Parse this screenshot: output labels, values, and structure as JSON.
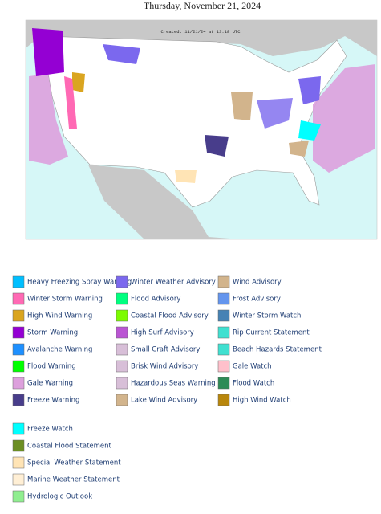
{
  "header": {
    "title": "Thursday, November 21, 2024"
  },
  "map": {
    "created": "Created: 11/21/24 at 13:18 UTC"
  },
  "legend_groups": [
    {
      "items": [
        {
          "label": "Heavy Freezing Spray Warning",
          "color": "#00bfff"
        },
        {
          "label": "Winter Storm Warning",
          "color": "#ff69b4"
        },
        {
          "label": "High Wind Warning",
          "color": "#daa520"
        },
        {
          "label": "Storm Warning",
          "color": "#9400d3"
        },
        {
          "label": "Avalanche Warning",
          "color": "#1e90ff"
        },
        {
          "label": "Flood Warning",
          "color": "#00ff00"
        },
        {
          "label": "Gale Warning",
          "color": "#dda0dd"
        },
        {
          "label": "Freeze Warning",
          "color": "#483d8b"
        },
        {
          "label": "Winter Weather Advisory",
          "color": "#7b68ee"
        },
        {
          "label": "Flood Advisory",
          "color": "#00ff7f"
        },
        {
          "label": "Coastal Flood Advisory",
          "color": "#7cfc00"
        },
        {
          "label": "High Surf Advisory",
          "color": "#ba55d3"
        },
        {
          "label": "Small Craft Advisory",
          "color": "#d8bfd8"
        },
        {
          "label": "Brisk Wind Advisory",
          "color": "#d8bfd8"
        },
        {
          "label": "Hazardous Seas Warning",
          "color": "#d8bfd8"
        },
        {
          "label": "Lake Wind Advisory",
          "color": "#d2b48c"
        },
        {
          "label": "Wind Advisory",
          "color": "#d2b48c"
        },
        {
          "label": "Frost Advisory",
          "color": "#6495ed"
        },
        {
          "label": "Winter Storm Watch",
          "color": "#4682b4"
        },
        {
          "label": "Rip Current Statement",
          "color": "#40e0d0"
        },
        {
          "label": "Beach Hazards Statement",
          "color": "#40e0d0"
        },
        {
          "label": "Gale Watch",
          "color": "#ffc0cb"
        },
        {
          "label": "Flood Watch",
          "color": "#2e8b57"
        },
        {
          "label": "High Wind Watch",
          "color": "#b8860b"
        }
      ]
    },
    {
      "items": [
        {
          "label": "Freeze Watch",
          "color": "#00ffff"
        },
        {
          "label": "Coastal Flood Statement",
          "color": "#6b8e23"
        },
        {
          "label": "Special Weather Statement",
          "color": "#ffe4b5"
        },
        {
          "label": "Marine Weather Statement",
          "color": "#ffefd5"
        },
        {
          "label": "Hydrologic Outlook",
          "color": "#90ee90"
        }
      ]
    }
  ]
}
